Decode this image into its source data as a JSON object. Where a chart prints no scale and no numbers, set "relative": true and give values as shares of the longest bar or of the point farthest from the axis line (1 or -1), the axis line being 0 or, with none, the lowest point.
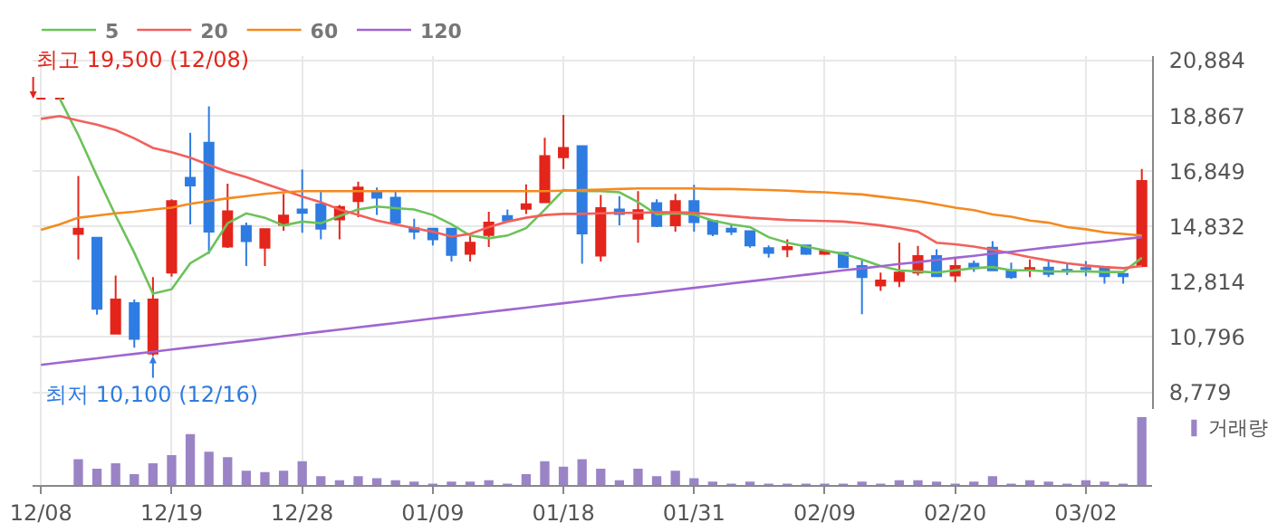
{
  "chart_data": [
    {
      "type": "candlestick",
      "categories": [
        "12/08",
        null,
        null,
        null,
        null,
        null,
        null,
        "12/19",
        null,
        null,
        null,
        null,
        null,
        null,
        "12/28",
        null,
        null,
        null,
        null,
        null,
        null,
        "01/09",
        null,
        null,
        null,
        null,
        null,
        null,
        "01/18",
        null,
        null,
        null,
        null,
        null,
        null,
        "01/31",
        null,
        null,
        null,
        null,
        null,
        null,
        "02/09",
        null,
        null,
        null,
        null,
        null,
        null,
        "02/20",
        null,
        null,
        null,
        null,
        null,
        null,
        "03/02",
        null,
        null,
        null
      ],
      "ohlc": [
        [
          19500,
          19500,
          19500,
          19500
        ],
        [
          19500,
          19500,
          19500,
          19500
        ],
        [
          14560,
          16670,
          13630,
          14750
        ],
        [
          14420,
          14420,
          11610,
          11830
        ],
        [
          10920,
          13040,
          10920,
          12170
        ],
        [
          12030,
          12170,
          10410,
          10730
        ],
        [
          10190,
          12980,
          10100,
          12170
        ],
        [
          13150,
          15820,
          13000,
          15760
        ],
        [
          16610,
          18250,
          14910,
          16330
        ],
        [
          17890,
          19220,
          13830,
          14640
        ],
        [
          14100,
          16390,
          14050,
          15390
        ],
        [
          14850,
          14970,
          13390,
          14300
        ],
        [
          14060,
          14730,
          13390,
          14730
        ],
        [
          14890,
          16020,
          14680,
          15230
        ],
        [
          15450,
          16910,
          14600,
          15330
        ],
        [
          15640,
          16120,
          14360,
          14750
        ],
        [
          15090,
          15620,
          14360,
          15540
        ],
        [
          15760,
          16470,
          15170,
          16250
        ],
        [
          16060,
          16250,
          15250,
          15880
        ],
        [
          15880,
          16120,
          14970,
          14970
        ],
        [
          14770,
          15110,
          14360,
          14640
        ],
        [
          14750,
          14750,
          14140,
          14360
        ],
        [
          14750,
          14750,
          13550,
          13790
        ],
        [
          13830,
          14480,
          13550,
          14240
        ],
        [
          14520,
          15370,
          14080,
          14970
        ],
        [
          15210,
          15450,
          14970,
          15050
        ],
        [
          15480,
          16370,
          15290,
          15640
        ],
        [
          15720,
          18070,
          15720,
          17400
        ],
        [
          17360,
          18900,
          16930,
          17700
        ],
        [
          17760,
          17800,
          13470,
          14580
        ],
        [
          13770,
          15980,
          13550,
          15500
        ],
        [
          15450,
          15940,
          14870,
          15290
        ],
        [
          15110,
          16120,
          14240,
          15430
        ],
        [
          15680,
          15820,
          14810,
          14850
        ],
        [
          14870,
          16020,
          14640,
          15760
        ],
        [
          15760,
          16350,
          14640,
          14990
        ],
        [
          15030,
          15070,
          14480,
          14560
        ],
        [
          14750,
          14870,
          14520,
          14640
        ],
        [
          14660,
          14660,
          14060,
          14140
        ],
        [
          14040,
          14140,
          13690,
          13870
        ],
        [
          14000,
          14360,
          13710,
          14080
        ],
        [
          14140,
          14140,
          13790,
          13830
        ],
        [
          13830,
          13960,
          13790,
          13920
        ],
        [
          13870,
          13900,
          13350,
          13350
        ],
        [
          13390,
          13590,
          11630,
          12980
        ],
        [
          12680,
          13150,
          12480,
          12860
        ],
        [
          12840,
          14240,
          12620,
          13150
        ],
        [
          13150,
          14120,
          13040,
          13750
        ],
        [
          13750,
          14000,
          12980,
          13020
        ],
        [
          13040,
          13710,
          12800,
          13390
        ],
        [
          13470,
          13590,
          13170,
          13310
        ],
        [
          14060,
          14300,
          13230,
          13230
        ],
        [
          13230,
          13510,
          12920,
          12980
        ],
        [
          13270,
          13630,
          12980,
          13310
        ],
        [
          13330,
          13630,
          12980,
          13100
        ],
        [
          13250,
          13510,
          13060,
          13190
        ],
        [
          13310,
          13570,
          13020,
          13270
        ],
        [
          13330,
          13330,
          12740,
          13020
        ],
        [
          13100,
          13190,
          12740,
          13020
        ],
        [
          13390,
          16930,
          13350,
          16490
        ]
      ],
      "colors": [
        "#e3251b",
        "#e3251b",
        "#e3251b",
        "#2e7ce1",
        "#e3251b",
        "#2e7ce1",
        "#e3251b",
        "#e3251b",
        "#2e7ce1",
        "#2e7ce1",
        "#e3251b",
        "#2e7ce1",
        "#e3251b",
        "#e3251b",
        "#2e7ce1",
        "#2e7ce1",
        "#e3251b",
        "#e3251b",
        "#2e7ce1",
        "#2e7ce1",
        "#2e7ce1",
        "#2e7ce1",
        "#2e7ce1",
        "#e3251b",
        "#e3251b",
        "#2e7ce1",
        "#e3251b",
        "#e3251b",
        "#e3251b",
        "#2e7ce1",
        "#e3251b",
        "#2e7ce1",
        "#e3251b",
        "#2e7ce1",
        "#e3251b",
        "#2e7ce1",
        "#2e7ce1",
        "#2e7ce1",
        "#2e7ce1",
        "#2e7ce1",
        "#e3251b",
        "#2e7ce1",
        "#e3251b",
        "#2e7ce1",
        "#2e7ce1",
        "#e3251b",
        "#e3251b",
        "#e3251b",
        "#2e7ce1",
        "#e3251b",
        "#2e7ce1",
        "#2e7ce1",
        "#2e7ce1",
        "#e3251b",
        "#2e7ce1",
        "#2e7ce1",
        "#2e7ce1",
        "#2e7ce1",
        "#2e7ce1",
        "#e3251b"
      ],
      "series": [
        {
          "name": "5",
          "type": "line",
          "color": "#6cc25a",
          "values": [
            null,
            19500,
            18170,
            16670,
            15230,
            13870,
            12380,
            12540,
            13490,
            13890,
            14950,
            15310,
            15150,
            14870,
            15010,
            14950,
            15210,
            15450,
            15560,
            15500,
            15450,
            15250,
            14910,
            14500,
            14400,
            14500,
            14770,
            15450,
            16160,
            16120,
            16120,
            16080,
            15720,
            15270,
            15310,
            15270,
            15050,
            14910,
            14810,
            14440,
            14240,
            14100,
            13960,
            13830,
            13630,
            13390,
            13230,
            13190,
            13150,
            13230,
            13310,
            13350,
            13230,
            13230,
            13190,
            13190,
            13190,
            13170,
            13170,
            13690
          ]
        },
        {
          "name": "20",
          "type": "line",
          "color": "#f2605c",
          "values": [
            18760,
            18860,
            18700,
            18550,
            18350,
            18050,
            17700,
            17540,
            17340,
            17080,
            16830,
            16630,
            16390,
            16160,
            15920,
            15720,
            15450,
            15250,
            15050,
            14910,
            14770,
            14640,
            14460,
            14560,
            14810,
            15010,
            15150,
            15250,
            15290,
            15290,
            15310,
            15330,
            15330,
            15350,
            15350,
            15330,
            15270,
            15210,
            15150,
            15110,
            15070,
            15050,
            15030,
            15010,
            14950,
            14870,
            14770,
            14640,
            14240,
            14180,
            14100,
            13980,
            13850,
            13710,
            13590,
            13490,
            13410,
            13350,
            13310,
            13390
          ]
        },
        {
          "name": "60",
          "type": "line",
          "color": "#f58a1f",
          "values": [
            14710,
            14910,
            15150,
            15230,
            15310,
            15370,
            15450,
            15520,
            15660,
            15760,
            15860,
            15940,
            16020,
            16080,
            16120,
            16120,
            16120,
            16120,
            16120,
            16120,
            16120,
            16120,
            16120,
            16120,
            16120,
            16120,
            16120,
            16120,
            16140,
            16160,
            16180,
            16200,
            16220,
            16220,
            16220,
            16220,
            16200,
            16200,
            16180,
            16160,
            16140,
            16100,
            16080,
            16040,
            16000,
            15920,
            15840,
            15760,
            15640,
            15520,
            15430,
            15270,
            15190,
            15050,
            14970,
            14810,
            14730,
            14620,
            14560,
            14500
          ]
        },
        {
          "name": "120",
          "type": "line",
          "color": "#a066d0",
          "values": [
            9780,
            9860,
            9940,
            10020,
            10100,
            10180,
            10260,
            10340,
            10420,
            10500,
            10580,
            10660,
            10740,
            10830,
            10910,
            10990,
            11070,
            11150,
            11230,
            11310,
            11390,
            11470,
            11550,
            11630,
            11710,
            11790,
            11870,
            11950,
            12030,
            12110,
            12190,
            12280,
            12350,
            12430,
            12510,
            12590,
            12670,
            12750,
            12830,
            12910,
            12990,
            13070,
            13150,
            13230,
            13300,
            13380,
            13460,
            13530,
            13610,
            13690,
            13760,
            13840,
            13910,
            13990,
            14070,
            14140,
            14220,
            14290,
            14370,
            14440
          ]
        }
      ],
      "ylim": [
        8170,
        21050
      ],
      "yticks": [
        {
          "value": 8779,
          "label": "8,779"
        },
        {
          "value": 10796,
          "label": "10,796"
        },
        {
          "value": 12814,
          "label": "12,814"
        },
        {
          "value": 14832,
          "label": "14,832"
        },
        {
          "value": 16849,
          "label": "16,849"
        },
        {
          "value": 18867,
          "label": "18,867"
        },
        {
          "value": 20884,
          "label": "20,884"
        }
      ],
      "annotations": [
        {
          "text": "최고 19,500 (12/08)",
          "x": "12/08",
          "y": 19500
        },
        "최저 10,100 (12/16)"
      ],
      "grid": true,
      "legend": "top left",
      "tick_labels": "y"
    },
    {
      "type": "bar",
      "relative": true,
      "categories": [
        "12/08",
        null,
        null,
        null,
        null,
        null,
        null,
        "12/19",
        null,
        null,
        null,
        null,
        null,
        null,
        "12/28",
        null,
        null,
        null,
        null,
        null,
        null,
        "01/09",
        null,
        null,
        null,
        null,
        null,
        null,
        "01/18",
        null,
        null,
        null,
        null,
        null,
        null,
        "01/31",
        null,
        null,
        null,
        null,
        null,
        null,
        "02/09",
        null,
        null,
        null,
        null,
        null,
        null,
        "02/20",
        null,
        null,
        null,
        null,
        null,
        null,
        "03/02",
        null,
        null,
        null
      ],
      "series": [
        {
          "name": "거래량",
          "color": "#9a84c6",
          "values": [
            null,
            null,
            0.38,
            0.24,
            0.32,
            0.16,
            0.32,
            0.44,
            0.75,
            0.49,
            0.41,
            0.21,
            0.19,
            0.21,
            0.35,
            0.13,
            0.07,
            0.13,
            0.1,
            0.07,
            0.05,
            0.02,
            0.05,
            0.05,
            0.07,
            0.02,
            0.16,
            0.35,
            0.27,
            0.38,
            0.24,
            0.07,
            0.24,
            0.13,
            0.21,
            0.1,
            0.05,
            0.02,
            0.05,
            0.02,
            0.02,
            0.02,
            0.02,
            0.02,
            0.05,
            0.02,
            0.07,
            0.07,
            0.05,
            0.02,
            0.05,
            0.13,
            0.02,
            0.07,
            0.05,
            0.02,
            0.07,
            0.05,
            0.02,
            1
          ]
        }
      ],
      "grid": "x",
      "legend": "top right",
      "tick_labels": "x"
    }
  ]
}
